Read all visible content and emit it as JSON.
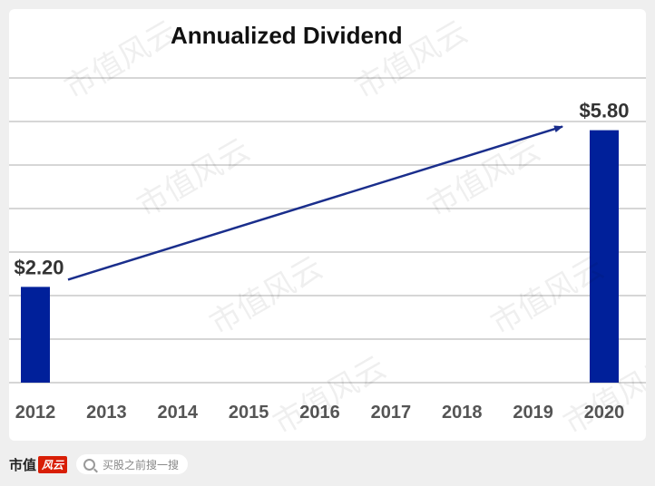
{
  "chart_data": {
    "type": "bar",
    "title": "Annualized Dividend",
    "categories": [
      "2012",
      "2013",
      "2014",
      "2015",
      "2016",
      "2017",
      "2018",
      "2019",
      "2020"
    ],
    "values": [
      2.2,
      null,
      null,
      null,
      null,
      null,
      null,
      null,
      5.8
    ],
    "data_labels": {
      "2012": "$2.20",
      "2020": "$5.80"
    },
    "bar_color": "#00209a",
    "arrow_color": "#1a2e8c",
    "ylim": [
      0,
      7
    ],
    "grid": true,
    "annotation": "arrow from 2012 bar to 2020 bar"
  },
  "watermark": "市值风云",
  "footer": {
    "brand_name": "市值",
    "brand_badge": "风云",
    "search_placeholder": "买股之前搜一搜"
  }
}
